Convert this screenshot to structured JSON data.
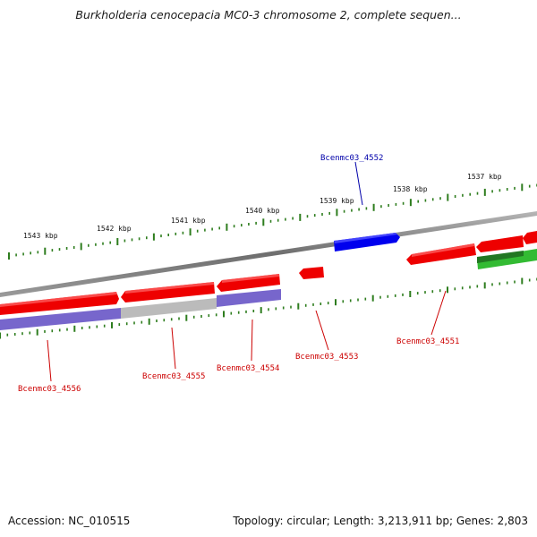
{
  "title": "Burkholderia cenocepacia MC0-3 chromosome 2, complete sequen...",
  "footer": {
    "accession": "Accession: NC_010515",
    "summary": "Topology: circular; Length: 3,213,911 bp; Genes: 2,803"
  },
  "ruler_labels": [
    "1543 kbp",
    "1542 kbp",
    "1541 kbp",
    "1540 kbp",
    "1539 kbp",
    "1538 kbp",
    "1537 kbp"
  ],
  "genes": [
    {
      "name": "Bcenmc03_4552",
      "strand": "forward",
      "color": "#0000ee"
    },
    {
      "name": "Bcenmc03_4556",
      "strand": "reverse",
      "color": "#ee0000"
    },
    {
      "name": "Bcenmc03_4555",
      "strand": "reverse",
      "color": "#ee0000"
    },
    {
      "name": "Bcenmc03_4554",
      "strand": "reverse",
      "color": "#ee0000"
    },
    {
      "name": "Bcenmc03_4553",
      "strand": "reverse",
      "color": "#ee0000"
    },
    {
      "name": "Bcenmc03_4551",
      "strand": "reverse",
      "color": "#ee0000"
    }
  ],
  "colors": {
    "forward_gene": "#0000ee",
    "reverse_gene": "#ee0000",
    "reverse_label": "#cc0000",
    "forward_label": "#0000aa",
    "backbone": "#7a7a7a",
    "ruler": "#2e7d1e",
    "feature_purple": "#7766cc",
    "feature_gray": "#bbbbbb",
    "feature_green": "#33bb33"
  }
}
